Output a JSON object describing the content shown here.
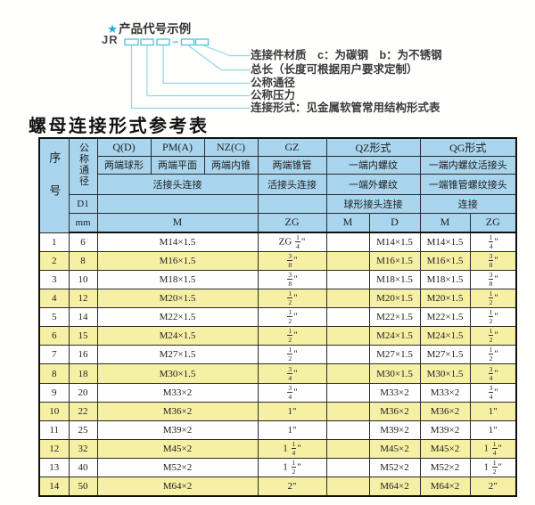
{
  "diagram": {
    "star": "★",
    "heading": "产品代号示例",
    "code_prefix": "JR",
    "labels": [
      "连接件材质　c：为碳钢　b：为不锈钢",
      "总长（长度可根据用户要求定制）",
      "公称通径",
      "公称压力",
      "连接形式：见金属软管常用结构形式表"
    ]
  },
  "table": {
    "title": "螺母连接形式参考表",
    "header": {
      "xuhao": "序号",
      "gongcheng_tongjing": "公称通径",
      "d1": "D1",
      "mm": "mm",
      "q_code": "Q(D)",
      "q_desc": "两端球形",
      "pm_code": "PM(A)",
      "pm_desc": "两端平面",
      "nz_code": "NZ(C)",
      "nz_desc": "两端内锥",
      "gz_code": "GZ",
      "gz_desc": "两端锥管",
      "gz_conn": "活接头连接",
      "gz_unit": "ZG",
      "qpmnz_conn": "活接头连接",
      "m_unit": "M",
      "qz_code": "QZ形式",
      "qz_desc1": "一端内螺纹",
      "qz_desc2": "一端外螺纹",
      "qz_conn": "球形接头连接",
      "qz_unit_m": "M",
      "qz_unit_d": "D",
      "qg_code": "QG形式",
      "qg_desc1": "一端内螺纹活接头",
      "qg_desc2": "一端锥管螺纹接头",
      "qg_conn": "连接",
      "qg_unit_m": "M",
      "qg_unit_zg": "ZG"
    },
    "rows": [
      {
        "no": "1",
        "mm": "6",
        "m": "M14×1.5",
        "zg": "ZG 1/4\"",
        "qz_m": "",
        "qz_d": "M14×1.5",
        "qg_m": "M14×1.5",
        "qg_zg": "1/4\""
      },
      {
        "no": "2",
        "mm": "8",
        "m": "M16×1.5",
        "zg": "3/8\"",
        "qz_m": "",
        "qz_d": "M16×1.5",
        "qg_m": "M16×1.5",
        "qg_zg": "3/8\""
      },
      {
        "no": "3",
        "mm": "10",
        "m": "M18×1.5",
        "zg": "3/8\"",
        "qz_m": "",
        "qz_d": "M18×1.5",
        "qg_m": "M18×1.5",
        "qg_zg": "3/8\""
      },
      {
        "no": "4",
        "mm": "12",
        "m": "M20×1.5",
        "zg": "1/2\"",
        "qz_m": "",
        "qz_d": "M20×1.5",
        "qg_m": "M20×1.5",
        "qg_zg": "1/2\""
      },
      {
        "no": "5",
        "mm": "14",
        "m": "M22×1.5",
        "zg": "1/2\"",
        "qz_m": "",
        "qz_d": "M22×1.5",
        "qg_m": "M22×1.5",
        "qg_zg": "1/2\""
      },
      {
        "no": "6",
        "mm": "15",
        "m": "M24×1.5",
        "zg": "1/2\"",
        "qz_m": "",
        "qz_d": "M24×1.5",
        "qg_m": "M24×1.5",
        "qg_zg": "1/2\""
      },
      {
        "no": "7",
        "mm": "16",
        "m": "M27×1.5",
        "zg": "1/2\"",
        "qz_m": "",
        "qz_d": "M27×1.5",
        "qg_m": "M27×1.5",
        "qg_zg": "1/2\""
      },
      {
        "no": "8",
        "mm": "18",
        "m": "M30×1.5",
        "zg": "3/4\"",
        "qz_m": "",
        "qz_d": "M30×1.5",
        "qg_m": "M30×1.5",
        "qg_zg": "3/4\""
      },
      {
        "no": "9",
        "mm": "20",
        "m": "M33×2",
        "zg": "3/4\"",
        "qz_m": "",
        "qz_d": "M33×2",
        "qg_m": "M33×2",
        "qg_zg": "3/4\""
      },
      {
        "no": "10",
        "mm": "22",
        "m": "M36×2",
        "zg": "1\"",
        "qz_m": "",
        "qz_d": "M36×2",
        "qg_m": "M36×2",
        "qg_zg": "1\""
      },
      {
        "no": "11",
        "mm": "25",
        "m": "M39×2",
        "zg": "1\"",
        "qz_m": "",
        "qz_d": "M39×2",
        "qg_m": "M39×2",
        "qg_zg": "1\""
      },
      {
        "no": "12",
        "mm": "32",
        "m": "M45×2",
        "zg": "1 1/4\"",
        "qz_m": "",
        "qz_d": "M45×2",
        "qg_m": "M45×2",
        "qg_zg": "1 1/4\""
      },
      {
        "no": "13",
        "mm": "40",
        "m": "M52×2",
        "zg": "1 1/2\"",
        "qz_m": "",
        "qz_d": "M52×2",
        "qg_m": "M52×2",
        "qg_zg": "1 1/2\""
      },
      {
        "no": "14",
        "mm": "50",
        "m": "M64×2",
        "zg": "2\"",
        "qz_m": "",
        "qz_d": "M64×2",
        "qg_m": "M64×2",
        "qg_zg": "2\""
      }
    ]
  },
  "colors": {
    "header_blue": "#a9d6ee",
    "row_yellow": "#f6f0a4",
    "row_white": "#fefefe",
    "diagram_cyan_line": "#8fd6e8",
    "diagram_box_border": "#4ec1dd",
    "star_blue": "#29abe2",
    "border_black": "#2a2a2a"
  }
}
